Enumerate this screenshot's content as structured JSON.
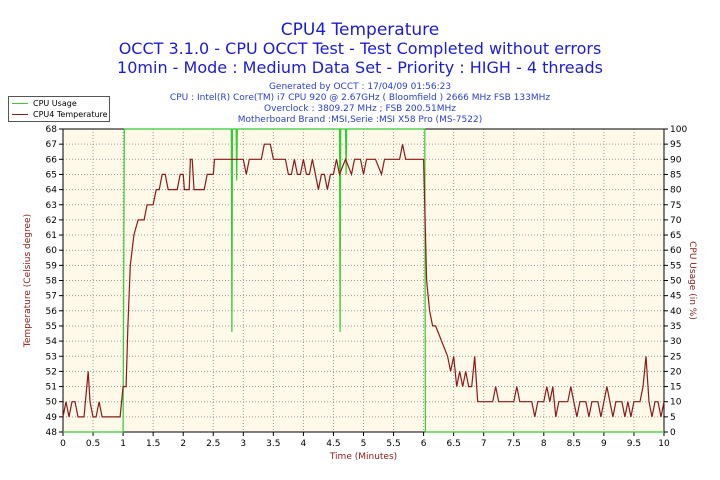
{
  "header": {
    "title": "CPU4 Temperature",
    "subtitle1": "OCCT 3.1.0 - CPU OCCT Test - Test Completed without errors",
    "subtitle2": "10min - Mode : Medium Data Set - Priority : HIGH - 4 threads"
  },
  "info": {
    "generated": "Generated by OCCT : 17/04/09 01:56:23",
    "cpu": "CPU : Intel(R) Core(TM) i7 CPU 920 @ 2.67GHz ( Bloomfield ) 2666 MHz FSB 133MHz",
    "overclock": "Overclock : 3809.27 MHz ; FSB 200.51MHz",
    "motherboard": "Motherboard Brand :MSI,Serie :MSI X58 Pro (MS-7522)"
  },
  "colors": {
    "plot_background": "#fff9ea",
    "grid": "#9a9a9a",
    "temperature": "#8b1a1a",
    "cpu_usage": "#33cc33",
    "title": "#1c1cd6",
    "info": "#2a3fd0"
  },
  "chart_data": {
    "type": "line",
    "title": "CPU4 Temperature",
    "xlabel": "Time (Minutes)",
    "ylabel": "Temperature (Celsius degree)",
    "y2label": "CPU Usage (in %)",
    "xlim": [
      0,
      10
    ],
    "ylim": [
      48,
      68
    ],
    "y2lim": [
      0,
      100
    ],
    "x_ticks": [
      "0",
      "0.5",
      "1",
      "1.5",
      "2",
      "2.5",
      "3",
      "3.5",
      "4",
      "4.5",
      "5",
      "5.5",
      "6",
      "6.5",
      "7",
      "7.5",
      "8",
      "8.5",
      "9",
      "9.5",
      "10"
    ],
    "y_ticks": [
      "48",
      "49",
      "50",
      "51",
      "52",
      "53",
      "54",
      "55",
      "56",
      "57",
      "58",
      "59",
      "60",
      "61",
      "62",
      "63",
      "64",
      "65",
      "66",
      "67",
      "68"
    ],
    "y2_ticks": [
      "0",
      "5",
      "10",
      "15",
      "20",
      "25",
      "30",
      "35",
      "40",
      "45",
      "50",
      "55",
      "60",
      "65",
      "70",
      "75",
      "80",
      "85",
      "90",
      "95",
      "100"
    ],
    "grid": true,
    "legend_position": "top-left",
    "series": [
      {
        "name": "CPU Usage",
        "axis": "right",
        "color": "#33cc33",
        "points": [
          [
            0,
            0
          ],
          [
            1.0,
            0
          ],
          [
            1.02,
            100
          ],
          [
            2.8,
            100
          ],
          [
            2.81,
            33
          ],
          [
            2.82,
            100
          ],
          [
            2.88,
            100
          ],
          [
            2.89,
            83
          ],
          [
            2.9,
            100
          ],
          [
            4.6,
            100
          ],
          [
            4.61,
            33
          ],
          [
            4.62,
            100
          ],
          [
            4.7,
            100
          ],
          [
            4.71,
            85
          ],
          [
            4.72,
            100
          ],
          [
            6.02,
            100
          ],
          [
            6.03,
            0
          ],
          [
            10,
            0
          ]
        ]
      },
      {
        "name": "CPU4 Temperature",
        "axis": "left",
        "color": "#8b1a1a",
        "points": [
          [
            0,
            49
          ],
          [
            0.05,
            50
          ],
          [
            0.1,
            49
          ],
          [
            0.15,
            50
          ],
          [
            0.2,
            50
          ],
          [
            0.25,
            49
          ],
          [
            0.3,
            49
          ],
          [
            0.35,
            49
          ],
          [
            0.42,
            52
          ],
          [
            0.45,
            50
          ],
          [
            0.5,
            49
          ],
          [
            0.55,
            49
          ],
          [
            0.6,
            50
          ],
          [
            0.65,
            49
          ],
          [
            0.7,
            49
          ],
          [
            0.8,
            49
          ],
          [
            0.9,
            49
          ],
          [
            0.95,
            49
          ],
          [
            1.0,
            51
          ],
          [
            1.05,
            51
          ],
          [
            1.08,
            55
          ],
          [
            1.12,
            59
          ],
          [
            1.18,
            61
          ],
          [
            1.25,
            62
          ],
          [
            1.35,
            62
          ],
          [
            1.4,
            63
          ],
          [
            1.5,
            63
          ],
          [
            1.55,
            64
          ],
          [
            1.6,
            64
          ],
          [
            1.65,
            65
          ],
          [
            1.7,
            65
          ],
          [
            1.75,
            64
          ],
          [
            1.9,
            64
          ],
          [
            1.95,
            65
          ],
          [
            2.0,
            65
          ],
          [
            2.02,
            64
          ],
          [
            2.1,
            64
          ],
          [
            2.12,
            66
          ],
          [
            2.15,
            66
          ],
          [
            2.18,
            64
          ],
          [
            2.35,
            64
          ],
          [
            2.4,
            65
          ],
          [
            2.5,
            65
          ],
          [
            2.52,
            66
          ],
          [
            3.0,
            66
          ],
          [
            3.05,
            65
          ],
          [
            3.1,
            66
          ],
          [
            3.3,
            66
          ],
          [
            3.35,
            67
          ],
          [
            3.45,
            67
          ],
          [
            3.5,
            66
          ],
          [
            3.7,
            66
          ],
          [
            3.75,
            65
          ],
          [
            3.8,
            65
          ],
          [
            3.85,
            66
          ],
          [
            3.9,
            65
          ],
          [
            3.95,
            65
          ],
          [
            4.0,
            66
          ],
          [
            4.05,
            65
          ],
          [
            4.1,
            65
          ],
          [
            4.15,
            66
          ],
          [
            4.2,
            65
          ],
          [
            4.25,
            64
          ],
          [
            4.3,
            65
          ],
          [
            4.35,
            65
          ],
          [
            4.4,
            64
          ],
          [
            4.45,
            65
          ],
          [
            4.5,
            65
          ],
          [
            4.55,
            66
          ],
          [
            4.6,
            65
          ],
          [
            4.7,
            66
          ],
          [
            4.8,
            65
          ],
          [
            4.85,
            66
          ],
          [
            4.95,
            66
          ],
          [
            5.0,
            65
          ],
          [
            5.05,
            66
          ],
          [
            5.2,
            66
          ],
          [
            5.3,
            65
          ],
          [
            5.35,
            66
          ],
          [
            5.45,
            66
          ],
          [
            5.5,
            66
          ],
          [
            5.55,
            66
          ],
          [
            5.6,
            66
          ],
          [
            5.65,
            67
          ],
          [
            5.7,
            66
          ],
          [
            6.0,
            66
          ],
          [
            6.05,
            58
          ],
          [
            6.1,
            56
          ],
          [
            6.15,
            55
          ],
          [
            6.2,
            55
          ],
          [
            6.3,
            54
          ],
          [
            6.4,
            53
          ],
          [
            6.45,
            52
          ],
          [
            6.5,
            53
          ],
          [
            6.55,
            51
          ],
          [
            6.6,
            52
          ],
          [
            6.65,
            51
          ],
          [
            6.7,
            52
          ],
          [
            6.75,
            51
          ],
          [
            6.8,
            51
          ],
          [
            6.85,
            53
          ],
          [
            6.9,
            50
          ],
          [
            7.0,
            50
          ],
          [
            7.1,
            50
          ],
          [
            7.15,
            50
          ],
          [
            7.2,
            51
          ],
          [
            7.25,
            50
          ],
          [
            7.3,
            50
          ],
          [
            7.5,
            50
          ],
          [
            7.55,
            51
          ],
          [
            7.6,
            50
          ],
          [
            7.8,
            50
          ],
          [
            7.85,
            49
          ],
          [
            7.9,
            50
          ],
          [
            8.0,
            50
          ],
          [
            8.05,
            51
          ],
          [
            8.1,
            50
          ],
          [
            8.15,
            51
          ],
          [
            8.2,
            49
          ],
          [
            8.25,
            50
          ],
          [
            8.4,
            50
          ],
          [
            8.45,
            51
          ],
          [
            8.5,
            50
          ],
          [
            8.55,
            49
          ],
          [
            8.6,
            50
          ],
          [
            8.7,
            50
          ],
          [
            8.75,
            49
          ],
          [
            8.8,
            50
          ],
          [
            8.9,
            50
          ],
          [
            8.95,
            49
          ],
          [
            9.0,
            50
          ],
          [
            9.05,
            51
          ],
          [
            9.1,
            50
          ],
          [
            9.15,
            49
          ],
          [
            9.2,
            50
          ],
          [
            9.3,
            50
          ],
          [
            9.35,
            49
          ],
          [
            9.4,
            50
          ],
          [
            9.45,
            49
          ],
          [
            9.5,
            50
          ],
          [
            9.55,
            50
          ],
          [
            9.6,
            50
          ],
          [
            9.65,
            51
          ],
          [
            9.7,
            53
          ],
          [
            9.75,
            50
          ],
          [
            9.8,
            49
          ],
          [
            9.85,
            50
          ],
          [
            9.9,
            50
          ],
          [
            9.95,
            49
          ],
          [
            10.0,
            50
          ]
        ]
      }
    ]
  }
}
